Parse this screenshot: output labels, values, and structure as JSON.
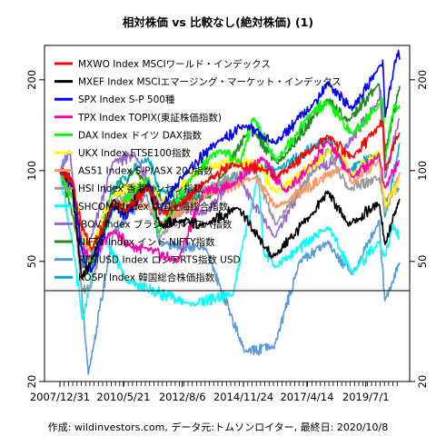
{
  "chart_data": {
    "type": "line",
    "title": "相対株価 vs 比較なし(絶対株価) (1)",
    "caption": "作成: wildinvestors.com, データ元:トムソンロイター, 最終日: 2020/10/8",
    "y_scale": "log",
    "ylim": [
      20,
      260
    ],
    "y_ticks": [
      20,
      50,
      100,
      200
    ],
    "x_range": [
      "2007-12-31",
      "2020-10-08"
    ],
    "x_ticks": [
      "2007/12/31",
      "2010/5/21",
      "2012/8/6",
      "2014/11/24",
      "2017/4/14",
      "2019/7/1"
    ],
    "reference_line": 40,
    "grid": false,
    "legend_position": "top-left",
    "series": [
      {
        "name": "MXWO Index MSCIワールド・インデックス",
        "color": "#ff0000",
        "points": [
          [
            "2007-12-31",
            100
          ],
          [
            "2008-06-30",
            90
          ],
          [
            "2008-10-31",
            64
          ],
          [
            "2009-03-09",
            55
          ],
          [
            "2009-12-31",
            78
          ],
          [
            "2010-06-30",
            74
          ],
          [
            "2011-04-29",
            88
          ],
          [
            "2011-10-03",
            72
          ],
          [
            "2012-06-01",
            76
          ],
          [
            "2013-06-28",
            92
          ],
          [
            "2014-06-30",
            105
          ],
          [
            "2015-09-29",
            100
          ],
          [
            "2016-02-11",
            94
          ],
          [
            "2017-06-30",
            118
          ],
          [
            "2018-01-26",
            130
          ],
          [
            "2018-12-24",
            110
          ],
          [
            "2019-12-31",
            140
          ],
          [
            "2020-02-19",
            145
          ],
          [
            "2020-03-23",
            100
          ],
          [
            "2020-10-08",
            135
          ]
        ]
      },
      {
        "name": "MXEF Index MSCIエマージング・マーケット・インデックス",
        "color": "#000000",
        "points": [
          [
            "2007-12-31",
            100
          ],
          [
            "2008-05-30",
            95
          ],
          [
            "2008-10-27",
            44
          ],
          [
            "2009-03-09",
            50
          ],
          [
            "2009-12-31",
            80
          ],
          [
            "2010-05-25",
            72
          ],
          [
            "2011-04-29",
            90
          ],
          [
            "2011-10-03",
            66
          ],
          [
            "2012-06-01",
            68
          ],
          [
            "2013-06-24",
            66
          ],
          [
            "2014-09-05",
            76
          ],
          [
            "2015-09-29",
            55
          ],
          [
            "2016-01-21",
            52
          ],
          [
            "2017-06-30",
            72
          ],
          [
            "2018-01-26",
            85
          ],
          [
            "2018-10-29",
            66
          ],
          [
            "2019-12-31",
            78
          ],
          [
            "2020-03-23",
            57
          ],
          [
            "2020-10-08",
            80
          ]
        ]
      },
      {
        "name": "SPX Index S-P 500種",
        "color": "#0000ff",
        "points": [
          [
            "2007-12-31",
            100
          ],
          [
            "2008-06-30",
            86
          ],
          [
            "2008-11-20",
            51
          ],
          [
            "2009-03-09",
            46
          ],
          [
            "2009-12-31",
            76
          ],
          [
            "2010-07-02",
            70
          ],
          [
            "2011-04-29",
            92
          ],
          [
            "2011-10-03",
            74
          ],
          [
            "2012-09-14",
            98
          ],
          [
            "2013-12-31",
            126
          ],
          [
            "2014-12-31",
            141
          ],
          [
            "2015-08-25",
            128
          ],
          [
            "2016-02-11",
            124
          ],
          [
            "2017-06-30",
            165
          ],
          [
            "2018-01-26",
            195
          ],
          [
            "2018-12-24",
            160
          ],
          [
            "2019-12-31",
            220
          ],
          [
            "2020-02-19",
            230
          ],
          [
            "2020-03-23",
            152
          ],
          [
            "2020-09-02",
            245
          ],
          [
            "2020-10-08",
            235
          ]
        ]
      },
      {
        "name": "TPX Index TOPIX(東証株価指数)",
        "color": "#ff00aa",
        "points": [
          [
            "2007-12-31",
            100
          ],
          [
            "2008-06-30",
            93
          ],
          [
            "2008-10-27",
            55
          ],
          [
            "2009-03-10",
            52
          ],
          [
            "2009-12-31",
            63
          ],
          [
            "2010-08-31",
            56
          ],
          [
            "2011-03-15",
            55
          ],
          [
            "2012-06-04",
            50
          ],
          [
            "2013-05-22",
            85
          ],
          [
            "2014-06-30",
            90
          ],
          [
            "2015-08-10",
            110
          ],
          [
            "2016-06-24",
            85
          ],
          [
            "2017-06-30",
            105
          ],
          [
            "2018-01-23",
            125
          ],
          [
            "2018-12-25",
            95
          ],
          [
            "2019-12-31",
            113
          ],
          [
            "2020-03-16",
            88
          ],
          [
            "2020-10-08",
            108
          ]
        ]
      },
      {
        "name": "DAX Index ドイツ DAX指数",
        "color": "#00ff00",
        "points": [
          [
            "2007-12-31",
            100
          ],
          [
            "2008-06-30",
            80
          ],
          [
            "2008-11-21",
            54
          ],
          [
            "2009-03-06",
            50
          ],
          [
            "2009-12-31",
            74
          ],
          [
            "2011-05-02",
            94
          ],
          [
            "2011-09-12",
            62
          ],
          [
            "2012-12-31",
            96
          ],
          [
            "2013-12-31",
            117
          ],
          [
            "2014-10-16",
            107
          ],
          [
            "2015-04-10",
            150
          ],
          [
            "2016-02-11",
            108
          ],
          [
            "2017-06-30",
            157
          ],
          [
            "2018-01-23",
            168
          ],
          [
            "2018-12-27",
            132
          ],
          [
            "2019-12-31",
            165
          ],
          [
            "2020-02-19",
            172
          ],
          [
            "2020-03-18",
            107
          ],
          [
            "2020-07-15",
            162
          ],
          [
            "2020-10-08",
            164
          ]
        ]
      },
      {
        "name": "UKX Index FTSE100指数",
        "color": "#ffff00",
        "points": [
          [
            "2007-12-31",
            100
          ],
          [
            "2008-06-30",
            86
          ],
          [
            "2008-11-21",
            61
          ],
          [
            "2009-03-03",
            56
          ],
          [
            "2009-12-31",
            83
          ],
          [
            "2011-04-29",
            93
          ],
          [
            "2011-10-03",
            78
          ],
          [
            "2013-05-22",
            102
          ],
          [
            "2015-04-27",
            108
          ],
          [
            "2016-02-11",
            85
          ],
          [
            "2018-05-22",
            119
          ],
          [
            "2018-12-24",
            97
          ],
          [
            "2019-12-31",
            116
          ],
          [
            "2020-03-23",
            77
          ],
          [
            "2020-10-08",
            93
          ]
        ]
      },
      {
        "name": "AS51 Index S-P/ASX 200指数",
        "color": "#ff9966",
        "points": [
          [
            "2007-12-31",
            100
          ],
          [
            "2008-06-30",
            86
          ],
          [
            "2008-11-21",
            58
          ],
          [
            "2009-03-06",
            54
          ],
          [
            "2009-12-31",
            77
          ],
          [
            "2011-04-29",
            77
          ],
          [
            "2011-10-03",
            66
          ],
          [
            "2013-05-14",
            82
          ],
          [
            "2015-04-27",
            95
          ],
          [
            "2016-02-11",
            76
          ],
          [
            "2018-08-30",
            103
          ],
          [
            "2018-12-20",
            91
          ],
          [
            "2019-12-31",
            108
          ],
          [
            "2020-03-23",
            73
          ],
          [
            "2020-10-08",
            98
          ]
        ]
      },
      {
        "name": "HSI Index 香港ハンセン指数",
        "color": "#999999",
        "points": [
          [
            "2007-12-31",
            100
          ],
          [
            "2008-06-30",
            80
          ],
          [
            "2008-10-27",
            40
          ],
          [
            "2009-03-09",
            42
          ],
          [
            "2009-12-31",
            79
          ],
          [
            "2011-04-29",
            87
          ],
          [
            "2011-10-03",
            60
          ],
          [
            "2013-02-01",
            84
          ],
          [
            "2015-04-28",
            101
          ],
          [
            "2016-02-12",
            66
          ],
          [
            "2018-01-26",
            118
          ],
          [
            "2018-10-30",
            87
          ],
          [
            "2019-12-31",
            95
          ],
          [
            "2020-03-23",
            80
          ],
          [
            "2020-10-08",
            88
          ]
        ]
      },
      {
        "name": "SHCOMP Index 中国上海総合指数",
        "color": "#00ffff",
        "points": [
          [
            "2007-12-31",
            100
          ],
          [
            "2008-06-30",
            55
          ],
          [
            "2008-11-04",
            32
          ],
          [
            "2009-08-04",
            64
          ],
          [
            "2010-07-02",
            43
          ],
          [
            "2012-12-03",
            36
          ],
          [
            "2014-06-30",
            39
          ],
          [
            "2015-06-12",
            96
          ],
          [
            "2015-08-26",
            54
          ],
          [
            "2016-01-28",
            48
          ],
          [
            "2018-01-29",
            65
          ],
          [
            "2019-01-03",
            46
          ],
          [
            "2019-12-31",
            58
          ],
          [
            "2020-03-19",
            52
          ],
          [
            "2020-07-09",
            66
          ],
          [
            "2020-10-08",
            60
          ]
        ]
      },
      {
        "name": "IBOV Index ブラジル ボベスパ指数",
        "color": "#9966cc",
        "points": [
          [
            "2007-12-31",
            100
          ],
          [
            "2008-05-20",
            115
          ],
          [
            "2008-10-27",
            47
          ],
          [
            "2009-03-02",
            60
          ],
          [
            "2009-12-31",
            107
          ],
          [
            "2010-11-04",
            112
          ],
          [
            "2011-08-08",
            80
          ],
          [
            "2013-06-18",
            72
          ],
          [
            "2014-09-02",
            95
          ],
          [
            "2016-01-26",
            60
          ],
          [
            "2017-06-30",
            100
          ],
          [
            "2018-06-18",
            110
          ],
          [
            "2019-12-31",
            172
          ],
          [
            "2020-01-23",
            184
          ],
          [
            "2020-03-23",
            95
          ],
          [
            "2020-10-08",
            150
          ]
        ]
      },
      {
        "name": "NIFTY Index インド NIFTY指数",
        "color": "#228b22",
        "points": [
          [
            "2007-12-31",
            100
          ],
          [
            "2008-06-30",
            70
          ],
          [
            "2008-10-27",
            48
          ],
          [
            "2009-03-09",
            47
          ],
          [
            "2009-12-31",
            85
          ],
          [
            "2010-11-05",
            100
          ],
          [
            "2011-12-20",
            78
          ],
          [
            "2013-08-28",
            82
          ],
          [
            "2015-03-03",
            140
          ],
          [
            "2016-02-26",
            105
          ],
          [
            "2018-01-29",
            173
          ],
          [
            "2018-10-26",
            146
          ],
          [
            "2019-12-31",
            193
          ],
          [
            "2020-03-23",
            116
          ],
          [
            "2020-10-08",
            190
          ]
        ]
      },
      {
        "name": "RTSIUSD Index ロシアRTS指数 USD",
        "color": "#5b9bd5",
        "points": [
          [
            "2007-12-31",
            100
          ],
          [
            "2008-05-19",
            115
          ],
          [
            "2009-01-23",
            21
          ],
          [
            "2009-12-31",
            62
          ],
          [
            "2011-04-08",
            83
          ],
          [
            "2011-10-04",
            57
          ],
          [
            "2013-06-24",
            55
          ],
          [
            "2014-12-16",
            25
          ],
          [
            "2016-01-20",
            26
          ],
          [
            "2017-01-03",
            50
          ],
          [
            "2018-01-26",
            58
          ],
          [
            "2018-12-24",
            45
          ],
          [
            "2019-12-31",
            68
          ],
          [
            "2020-03-18",
            37
          ],
          [
            "2020-10-08",
            50
          ]
        ]
      },
      {
        "name": "KOSPI Index 韓国総合株価指数",
        "color": "#00aacc",
        "points": [
          [
            "2007-12-31",
            100
          ],
          [
            "2008-06-30",
            87
          ],
          [
            "2008-10-24",
            49
          ],
          [
            "2009-03-02",
            52
          ],
          [
            "2009-12-31",
            88
          ],
          [
            "2011-04-29",
            110
          ],
          [
            "2011-09-26",
            86
          ],
          [
            "2013-06-25",
            82
          ],
          [
            "2015-04-23",
            104
          ],
          [
            "2016-02-12",
            100
          ],
          [
            "2018-01-29",
            128
          ],
          [
            "2018-10-29",
            100
          ],
          [
            "2019-12-31",
            113
          ],
          [
            "2020-03-19",
            70
          ],
          [
            "2020-10-08",
            123
          ]
        ]
      }
    ]
  }
}
